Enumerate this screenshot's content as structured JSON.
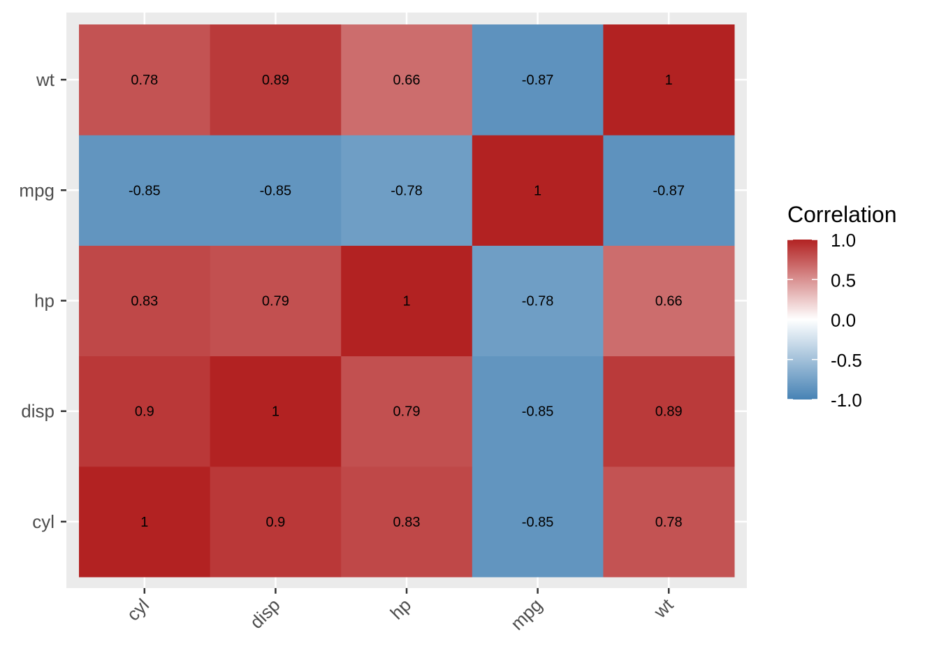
{
  "chart_data": {
    "type": "heatmap",
    "title": "",
    "xlabel": "",
    "ylabel": "",
    "x_categories": [
      "cyl",
      "disp",
      "hp",
      "mpg",
      "wt"
    ],
    "y_categories": [
      "cyl",
      "disp",
      "hp",
      "mpg",
      "wt"
    ],
    "values": [
      [
        1,
        0.9,
        0.83,
        -0.85,
        0.78
      ],
      [
        0.9,
        1,
        0.79,
        -0.85,
        0.89
      ],
      [
        0.83,
        0.79,
        1,
        -0.78,
        0.66
      ],
      [
        -0.85,
        -0.85,
        -0.78,
        1,
        -0.87
      ],
      [
        0.78,
        0.89,
        0.66,
        -0.87,
        1
      ]
    ],
    "value_labels": [
      [
        "1",
        "0.9",
        "0.83",
        "-0.85",
        "0.78"
      ],
      [
        "0.9",
        "1",
        "0.79",
        "-0.85",
        "0.89"
      ],
      [
        "0.83",
        "0.79",
        "1",
        "-0.78",
        "0.66"
      ],
      [
        "-0.85",
        "-0.85",
        "-0.78",
        "1",
        "-0.87"
      ],
      [
        "0.78",
        "0.89",
        "0.66",
        "-0.87",
        "1"
      ]
    ],
    "legend": {
      "title": "Correlation",
      "position": "right",
      "range": [
        -1,
        1
      ],
      "ticks": [
        "1.0",
        "0.5",
        "0.0",
        "-0.5",
        "-1.0"
      ],
      "tick_values": [
        1,
        0.5,
        0,
        -0.5,
        -1
      ]
    },
    "colors": {
      "low": "#4682B4",
      "mid": "#FFFFFF",
      "high": "#B22222"
    },
    "panel_background": "#EBEBEB",
    "grid": true
  }
}
